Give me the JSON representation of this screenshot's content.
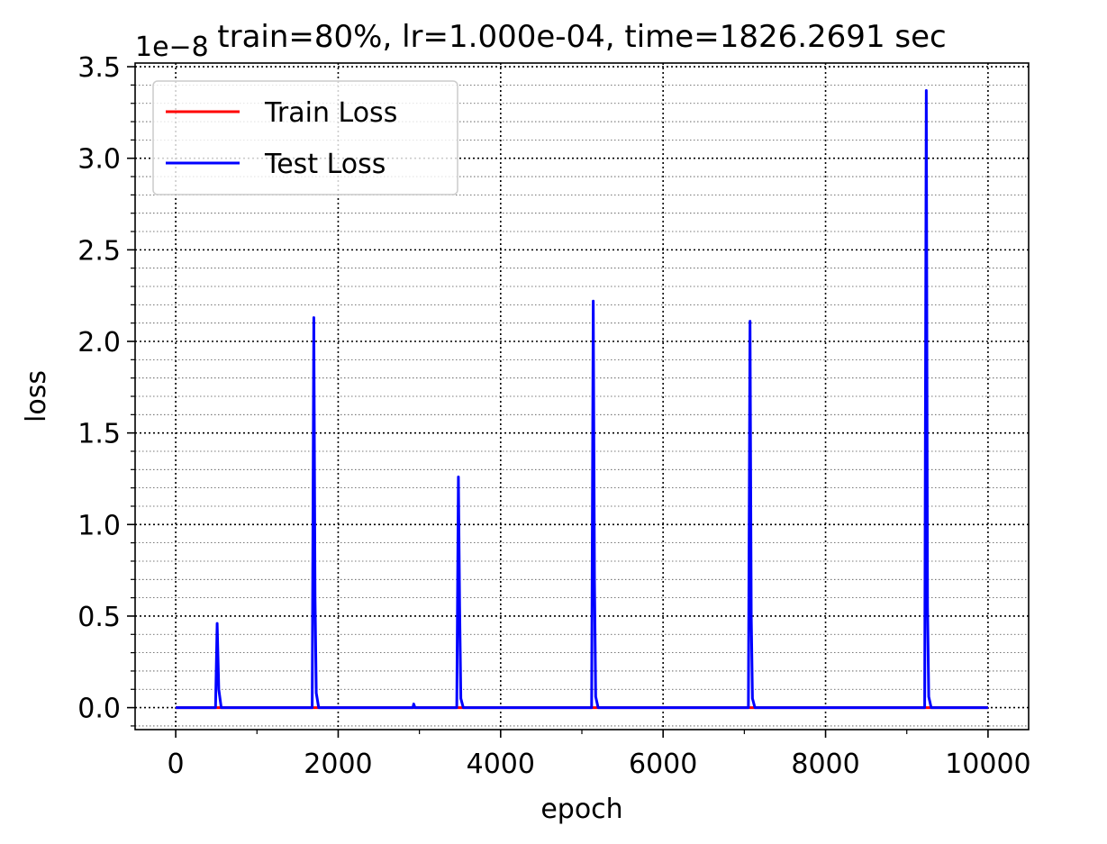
{
  "chart_data": {
    "type": "line",
    "title": "train=80%, lr=1.000e-04, time=1826.2691 sec",
    "xlabel": "epoch",
    "ylabel": "loss",
    "y_offset_label": "1e−8",
    "xlim": [
      -500,
      10500
    ],
    "ylim": [
      -0.12,
      3.52
    ],
    "xticks": [
      0,
      2000,
      4000,
      6000,
      8000,
      10000
    ],
    "xtick_labels": [
      "0",
      "2000",
      "4000",
      "6000",
      "8000",
      "10000"
    ],
    "yticks": [
      0.0,
      0.5,
      1.0,
      1.5,
      2.0,
      2.5,
      3.0,
      3.5
    ],
    "ytick_labels": [
      "0.0",
      "0.5",
      "1.0",
      "1.5",
      "2.0",
      "2.5",
      "3.0",
      "3.5"
    ],
    "grid": true,
    "legend_position": "upper-left",
    "series": [
      {
        "name": "Train Loss",
        "color": "#ff0000",
        "x": [
          0,
          10000
        ],
        "y": [
          0.0,
          0.0
        ]
      },
      {
        "name": "Test Loss",
        "color": "#0000ff",
        "x": [
          0,
          490,
          510,
          530,
          560,
          1680,
          1700,
          1715,
          1730,
          1760,
          2920,
          2930,
          2945,
          2970,
          3460,
          3480,
          3495,
          3510,
          3540,
          5120,
          5140,
          5155,
          5170,
          5200,
          7050,
          7070,
          7085,
          7100,
          7130,
          9220,
          9240,
          9255,
          9270,
          9300,
          10000
        ],
        "y": [
          0.0,
          0.0,
          0.46,
          0.1,
          0.0,
          0.0,
          2.13,
          0.6,
          0.08,
          0.0,
          0.0,
          0.02,
          0.0,
          0.0,
          0.0,
          1.26,
          0.55,
          0.05,
          0.0,
          0.0,
          2.22,
          0.7,
          0.06,
          0.0,
          0.0,
          2.11,
          0.5,
          0.05,
          0.0,
          0.0,
          3.37,
          0.55,
          0.06,
          0.0,
          0.0
        ]
      }
    ]
  }
}
